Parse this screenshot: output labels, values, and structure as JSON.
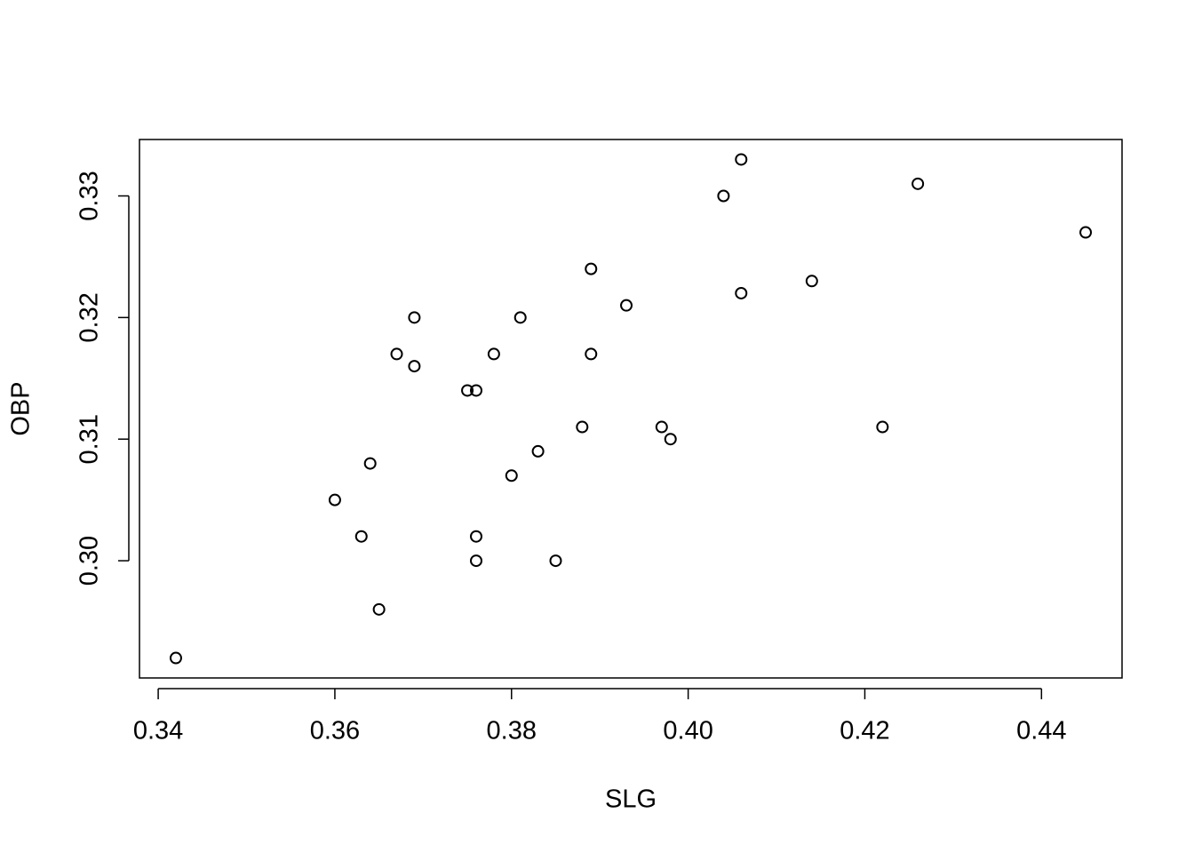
{
  "chart_data": {
    "type": "scatter",
    "xlabel": "SLG",
    "ylabel": "OBP",
    "x": [
      0.342,
      0.36,
      0.363,
      0.364,
      0.365,
      0.367,
      0.369,
      0.369,
      0.375,
      0.376,
      0.376,
      0.376,
      0.378,
      0.38,
      0.381,
      0.383,
      0.385,
      0.388,
      0.389,
      0.389,
      0.393,
      0.397,
      0.398,
      0.404,
      0.406,
      0.406,
      0.414,
      0.422,
      0.426,
      0.445
    ],
    "values": [
      0.292,
      0.305,
      0.302,
      0.308,
      0.296,
      0.317,
      0.32,
      0.316,
      0.314,
      0.314,
      0.302,
      0.3,
      0.317,
      0.307,
      0.32,
      0.309,
      0.3,
      0.311,
      0.324,
      0.317,
      0.321,
      0.311,
      0.31,
      0.33,
      0.333,
      0.322,
      0.323,
      0.311,
      0.331,
      0.327
    ],
    "color": "#000000",
    "xlim": [
      0.33788,
      0.44912
    ],
    "ylim": [
      0.29036,
      0.33464
    ],
    "xticks": [
      0.34,
      0.36,
      0.38,
      {
        "value": 0.4,
        "label": "0.40"
      },
      0.42,
      0.44
    ],
    "yticks": [
      {
        "value": 0.3,
        "label": "0.30"
      },
      0.31,
      0.32,
      0.33
    ],
    "grid": false
  }
}
